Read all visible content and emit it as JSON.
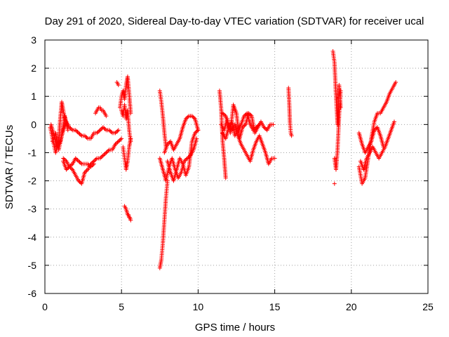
{
  "chart_data": {
    "type": "scatter",
    "title": "Day 291 of 2020, Sidereal Day-to-day VTEC variation (SDTVAR) for receiver ucal",
    "xlabel": "GPS time / hours",
    "ylabel": "SDTVAR / TECUs",
    "xlim": [
      0,
      25
    ],
    "ylim": [
      -6,
      3
    ],
    "xticks": [
      0,
      5,
      10,
      15,
      20,
      25
    ],
    "yticks": [
      -6,
      -5,
      -4,
      -3,
      -2,
      -1,
      0,
      1,
      2,
      3
    ],
    "grid": true,
    "marker": "+",
    "series": [
      {
        "name": "SDTVAR",
        "color": "#ff0000",
        "segments": [
          {
            "x": [
              0.35,
              0.5,
              0.7,
              0.9,
              1.0,
              1.1,
              1.2,
              1.35
            ],
            "y": [
              -0.1,
              -0.5,
              -1.0,
              -0.6,
              0.2,
              0.8,
              0.5,
              0.1
            ]
          },
          {
            "x": [
              0.4,
              0.6,
              0.8,
              1.0,
              1.2,
              1.4,
              1.6,
              1.8,
              2.0,
              2.2,
              2.4,
              2.6,
              2.8,
              3.0,
              3.2,
              3.4,
              3.6,
              3.8,
              4.0,
              4.2,
              4.4,
              4.6,
              4.8
            ],
            "y": [
              0.0,
              -0.4,
              -0.8,
              -0.6,
              -0.2,
              0.1,
              -0.1,
              -0.2,
              -0.2,
              -0.3,
              -0.4,
              -0.4,
              -0.5,
              -0.5,
              -0.3,
              -0.3,
              -0.2,
              -0.1,
              -0.2,
              -0.2,
              -0.3,
              -0.3,
              -0.2
            ]
          },
          {
            "x": [
              1.2,
              1.4,
              1.6,
              1.8,
              2.0,
              2.2,
              2.4,
              2.6,
              2.8,
              3.0,
              3.2,
              3.4,
              3.6,
              3.8,
              4.0,
              4.2,
              4.4,
              4.6,
              4.8,
              5.0
            ],
            "y": [
              -1.3,
              -1.6,
              -1.5,
              -1.6,
              -1.8,
              -2.0,
              -2.1,
              -1.7,
              -1.6,
              -1.4,
              -1.3,
              -1.2,
              -1.2,
              -1.1,
              -1.0,
              -0.9,
              -0.9,
              -0.7,
              -0.6,
              -0.5
            ]
          },
          {
            "x": [
              1.2,
              1.4,
              1.6,
              1.8,
              2.0,
              2.2,
              2.4,
              2.6,
              2.8,
              3.0,
              3.2
            ],
            "y": [
              -1.2,
              -1.3,
              -1.5,
              -1.4,
              -1.2,
              -1.3,
              -1.4,
              -1.4,
              -1.4,
              -1.5,
              -1.4
            ]
          },
          {
            "x": [
              0.5,
              0.7,
              0.9,
              1.1,
              1.3,
              1.5
            ],
            "y": [
              -0.6,
              -0.3,
              -0.9,
              -0.4,
              0.3,
              -0.2
            ]
          },
          {
            "x": [
              3.3,
              3.4,
              3.5,
              3.6,
              3.7,
              3.8,
              3.9,
              4.0
            ],
            "y": [
              0.4,
              0.5,
              0.6,
              0.6,
              0.5,
              0.5,
              0.4,
              0.3
            ]
          },
          {
            "x": [
              4.7,
              4.8
            ],
            "y": [
              1.5,
              1.4
            ]
          },
          {
            "x": [
              4.9,
              5.0,
              5.1,
              5.2,
              5.3,
              5.4,
              5.5,
              5.6
            ],
            "y": [
              0.6,
              1.0,
              1.2,
              0.9,
              1.4,
              1.7,
              1.1,
              0.4
            ]
          },
          {
            "x": [
              5.0,
              5.1,
              5.2,
              5.3,
              5.4,
              5.5,
              5.6
            ],
            "y": [
              0.5,
              0.3,
              0.7,
              0.2,
              0.5,
              -0.2,
              -0.6
            ]
          },
          {
            "x": [
              5.1,
              5.2,
              5.3,
              5.4,
              5.5,
              5.6
            ],
            "y": [
              -0.8,
              -1.2,
              -1.6,
              -1.3,
              -0.8,
              -0.5
            ]
          },
          {
            "x": [
              5.2,
              5.3,
              5.35,
              5.4,
              5.45,
              5.5,
              5.55,
              5.6
            ],
            "y": [
              -2.9,
              -3.0,
              -3.1,
              -3.2,
              -3.2,
              -3.3,
              -3.3,
              -3.4
            ]
          },
          {
            "x": [
              7.5,
              7.6,
              7.65,
              7.7,
              7.75,
              7.8,
              7.85,
              7.9,
              7.95,
              8.0
            ],
            "y": [
              -5.1,
              -4.8,
              -4.5,
              -4.2,
              -3.8,
              -3.4,
              -3.0,
              -2.6,
              -2.3,
              -2.0
            ]
          },
          {
            "x": [
              7.5,
              7.6,
              7.7,
              7.8,
              7.9
            ],
            "y": [
              1.2,
              0.8,
              0.3,
              -0.3,
              -0.8
            ]
          },
          {
            "x": [
              7.5,
              7.7,
              7.9,
              8.1,
              8.3,
              8.5,
              8.7,
              8.9,
              9.1,
              9.3,
              9.5,
              9.7,
              9.9
            ],
            "y": [
              -1.2,
              -1.6,
              -2.0,
              -1.5,
              -1.2,
              -1.6,
              -1.9,
              -1.7,
              -1.3,
              -1.2,
              -1.1,
              -0.9,
              -0.5
            ]
          },
          {
            "x": [
              7.8,
              8.0,
              8.2,
              8.4,
              8.6,
              8.8,
              9.0,
              9.2,
              9.4,
              9.6,
              9.8,
              10.0
            ],
            "y": [
              -1.0,
              -0.7,
              -0.6,
              -0.9,
              -0.7,
              -0.5,
              -0.1,
              0.2,
              0.3,
              0.3,
              0.2,
              -0.2
            ]
          },
          {
            "x": [
              8.0,
              8.2,
              8.4,
              8.6,
              8.8,
              9.0,
              9.2,
              9.4,
              9.6,
              9.8,
              10.0
            ],
            "y": [
              -1.3,
              -1.7,
              -2.0,
              -1.6,
              -1.2,
              -1.4,
              -1.8,
              -1.5,
              -0.6,
              -0.3,
              -0.2
            ]
          },
          {
            "x": [
              11.4,
              11.5,
              11.6,
              11.7,
              11.8
            ],
            "y": [
              1.2,
              0.6,
              -0.6,
              -1.2,
              -1.9
            ]
          },
          {
            "x": [
              11.5,
              11.7,
              11.9,
              12.1,
              12.3,
              12.5,
              12.7,
              12.9,
              13.1,
              13.3,
              13.5,
              13.7,
              13.9,
              14.1,
              14.3,
              14.5,
              14.7,
              14.9
            ],
            "y": [
              0.0,
              -0.2,
              0.2,
              -0.3,
              0.7,
              0.4,
              -0.5,
              -0.1,
              0.0,
              0.4,
              0.3,
              -0.3,
              -0.1,
              0.1,
              -0.1,
              -0.2,
              0.0,
              0.0
            ]
          },
          {
            "x": [
              11.6,
              11.8,
              12.0,
              12.2,
              12.4,
              12.6,
              12.8,
              13.0,
              13.2,
              13.4,
              13.6,
              13.8,
              14.0,
              14.2,
              14.4,
              14.6,
              14.8,
              15.0
            ],
            "y": [
              -0.3,
              -0.5,
              -0.1,
              -0.2,
              0.0,
              -0.4,
              -0.7,
              -0.9,
              -1.1,
              -1.3,
              -0.9,
              -0.6,
              -0.4,
              -0.7,
              -1.0,
              -1.4,
              -1.2,
              -1.2
            ]
          },
          {
            "x": [
              11.6,
              11.8,
              12.0,
              12.2,
              12.4,
              12.6,
              12.8,
              13.0,
              13.2,
              13.4,
              13.6,
              13.8,
              14.0
            ],
            "y": [
              0.4,
              0.3,
              -0.1,
              0.1,
              -0.4,
              -0.2,
              0.0,
              0.3,
              0.4,
              0.0,
              -0.2,
              -0.1,
              0.0
            ]
          },
          {
            "x": [
              15.9,
              15.95,
              16.0,
              16.05,
              16.1
            ],
            "y": [
              1.3,
              0.7,
              0.0,
              -0.3,
              -0.4
            ]
          },
          {
            "x": [
              18.8,
              18.9,
              18.95,
              19.0,
              19.05,
              19.1,
              19.2,
              19.3
            ],
            "y": [
              2.6,
              2.2,
              1.6,
              1.0,
              0.5,
              0.0,
              1.4,
              0.6
            ]
          },
          {
            "x": [
              18.9,
              19.0,
              19.1,
              19.2,
              19.3
            ],
            "y": [
              -1.2,
              -1.6,
              -0.9,
              0.3,
              1.2
            ]
          },
          {
            "x": [
              18.9
            ],
            "y": [
              -2.1
            ]
          },
          {
            "x": [
              20.5,
              20.7,
              20.9,
              21.1,
              21.3,
              21.5,
              21.7,
              21.9,
              22.1,
              22.3,
              22.5,
              22.7,
              22.9
            ],
            "y": [
              -1.5,
              -2.1,
              -1.9,
              -1.2,
              -0.5,
              0.1,
              0.4,
              0.4,
              0.6,
              0.8,
              1.1,
              1.3,
              1.5
            ]
          },
          {
            "x": [
              20.6,
              20.8,
              21.0,
              21.2,
              21.4,
              21.6,
              21.8,
              22.0,
              22.2,
              22.4,
              22.6,
              22.8
            ],
            "y": [
              -1.3,
              -1.6,
              -1.2,
              -1.0,
              -0.8,
              -1.0,
              -1.2,
              -1.0,
              -0.8,
              -0.5,
              -0.2,
              0.1
            ]
          },
          {
            "x": [
              20.5,
              20.7,
              20.9,
              21.1,
              21.3,
              21.5,
              21.7,
              21.9,
              22.1
            ],
            "y": [
              -0.3,
              -0.7,
              -1.0,
              -0.8,
              -0.6,
              -0.2,
              -0.1,
              -0.4,
              -0.8
            ]
          }
        ]
      }
    ]
  }
}
